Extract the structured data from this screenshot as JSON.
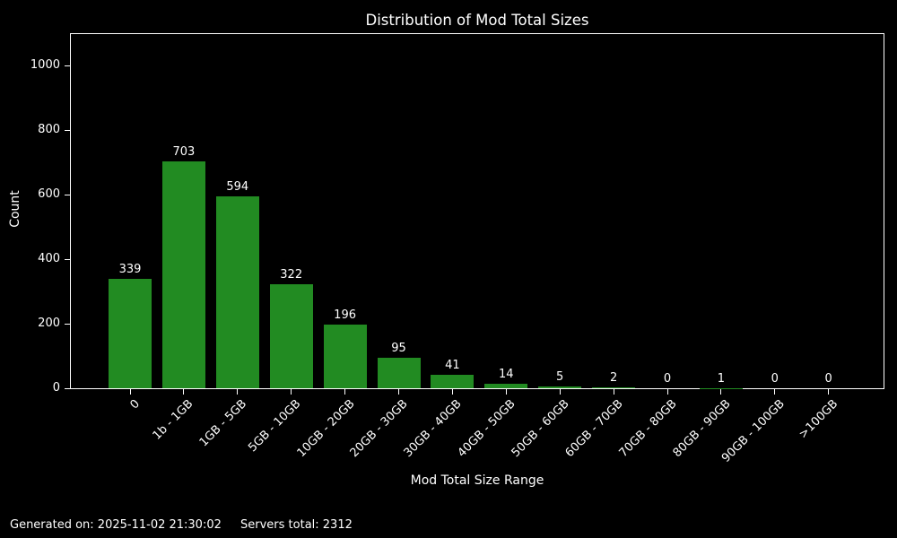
{
  "chart_data": {
    "type": "bar",
    "title": "Distribution of Mod Total Sizes",
    "xlabel": "Mod Total Size Range",
    "ylabel": "Count",
    "categories": [
      "0",
      "1b - 1GB",
      "1GB - 5GB",
      "5GB - 10GB",
      "10GB - 20GB",
      "20GB - 30GB",
      "30GB - 40GB",
      "40GB - 50GB",
      "50GB - 60GB",
      "60GB - 70GB",
      "70GB - 80GB",
      "80GB - 90GB",
      "90GB - 100GB",
      ">100GB"
    ],
    "values": [
      339,
      703,
      594,
      322,
      196,
      95,
      41,
      14,
      5,
      2,
      0,
      1,
      0,
      0
    ],
    "ylim": [
      0,
      1100
    ],
    "yticks": [
      0,
      200,
      400,
      600,
      800,
      1000
    ],
    "bar_labels_shown": true,
    "grid": false,
    "legend": "none",
    "colors": {
      "bar": "#228B22",
      "background": "#000000",
      "text": "#ffffff"
    }
  },
  "footer": {
    "generated": "Generated on: 2025-11-02 21:30:02",
    "servers_total": "Servers total: 2312"
  }
}
